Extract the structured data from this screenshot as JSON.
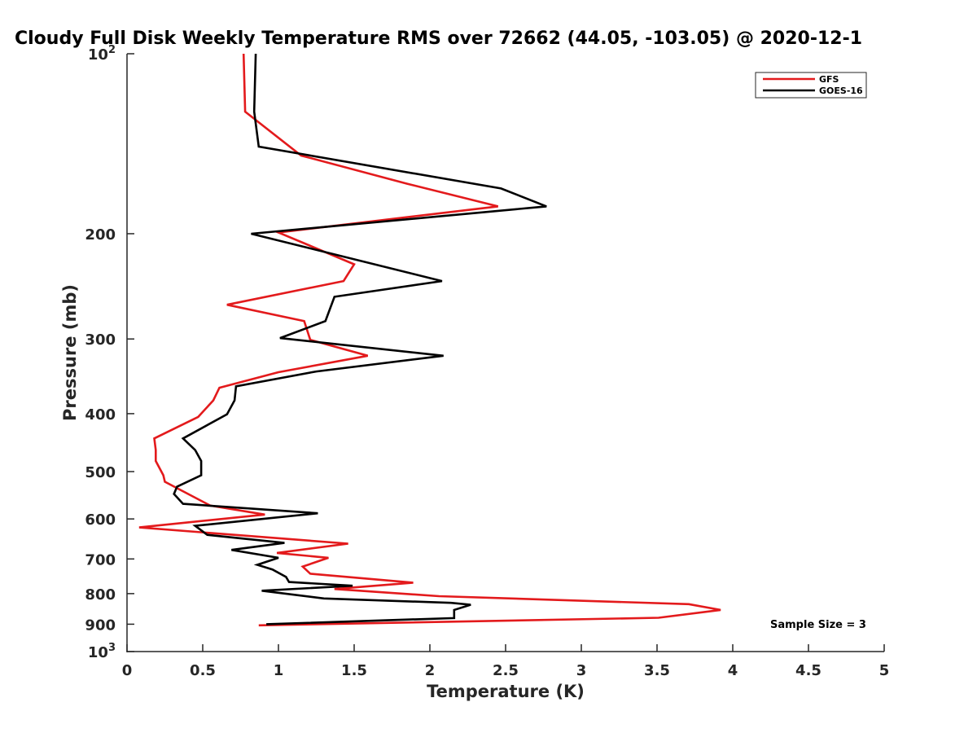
{
  "chart_data": {
    "type": "line",
    "title": "Cloudy Full Disk Weekly Temperature RMS over 72662 (44.05, -103.05) @ 2020-12-1",
    "xlabel": "Temperature (K)",
    "ylabel": "Pressure (mb)",
    "xlim": [
      0,
      5
    ],
    "ylim": [
      100,
      1000
    ],
    "y_scale": "log",
    "y_reversed": true,
    "grid": false,
    "legend_position": "top-right",
    "x_ticks": [
      {
        "value": 0,
        "label": "0"
      },
      {
        "value": 0.5,
        "label": "0.5"
      },
      {
        "value": 1,
        "label": "1"
      },
      {
        "value": 1.5,
        "label": "1.5"
      },
      {
        "value": 2,
        "label": "2"
      },
      {
        "value": 2.5,
        "label": "2.5"
      },
      {
        "value": 3,
        "label": "3"
      },
      {
        "value": 3.5,
        "label": "3.5"
      },
      {
        "value": 4,
        "label": "4"
      },
      {
        "value": 4.5,
        "label": "4.5"
      },
      {
        "value": 5,
        "label": "5"
      }
    ],
    "y_ticks": [
      {
        "value": 100,
        "base": "10",
        "exp": "2"
      },
      {
        "value": 200,
        "label": "200"
      },
      {
        "value": 300,
        "label": "300"
      },
      {
        "value": 400,
        "label": "400"
      },
      {
        "value": 500,
        "label": "500"
      },
      {
        "value": 600,
        "label": "600"
      },
      {
        "value": 700,
        "label": "700"
      },
      {
        "value": 800,
        "label": "800"
      },
      {
        "value": 900,
        "label": "900"
      },
      {
        "value": 1000,
        "base": "10",
        "exp": "3"
      }
    ],
    "annotation": "Sample Size = 3",
    "series": [
      {
        "name": "GFS",
        "color": "#e31a1c",
        "points": [
          [
            0.77,
            100
          ],
          [
            0.78,
            125
          ],
          [
            1.15,
            148
          ],
          [
            1.85,
            165
          ],
          [
            2.45,
            180
          ],
          [
            1.0,
            199
          ],
          [
            1.5,
            225
          ],
          [
            1.43,
            240
          ],
          [
            0.66,
            263
          ],
          [
            1.17,
            280
          ],
          [
            1.21,
            301
          ],
          [
            1.59,
            320
          ],
          [
            1.0,
            341
          ],
          [
            0.61,
            362
          ],
          [
            0.57,
            380
          ],
          [
            0.47,
            405
          ],
          [
            0.18,
            440
          ],
          [
            0.19,
            460
          ],
          [
            0.19,
            480
          ],
          [
            0.24,
            507
          ],
          [
            0.25,
            520
          ],
          [
            0.55,
            570
          ],
          [
            0.91,
            590
          ],
          [
            0.08,
            620
          ],
          [
            1.46,
            660
          ],
          [
            0.99,
            684
          ],
          [
            1.33,
            697
          ],
          [
            1.16,
            721
          ],
          [
            1.21,
            741
          ],
          [
            1.89,
            767
          ],
          [
            1.37,
            786
          ],
          [
            2.06,
            808
          ],
          [
            3.71,
            833
          ],
          [
            3.92,
            852
          ],
          [
            3.51,
            878
          ],
          [
            0.87,
            904
          ]
        ]
      },
      {
        "name": "GOES-16",
        "color": "#000000",
        "points": [
          [
            0.85,
            100
          ],
          [
            0.84,
            125
          ],
          [
            0.87,
            143
          ],
          [
            2.47,
            168
          ],
          [
            2.77,
            180
          ],
          [
            0.82,
            200
          ],
          [
            2.08,
            240
          ],
          [
            1.37,
            255
          ],
          [
            1.31,
            280
          ],
          [
            1.01,
            299
          ],
          [
            2.09,
            320
          ],
          [
            1.25,
            340
          ],
          [
            0.72,
            360
          ],
          [
            0.71,
            380
          ],
          [
            0.66,
            401
          ],
          [
            0.37,
            440
          ],
          [
            0.45,
            460
          ],
          [
            0.49,
            480
          ],
          [
            0.49,
            507
          ],
          [
            0.33,
            530
          ],
          [
            0.31,
            545
          ],
          [
            0.37,
            566
          ],
          [
            1.26,
            587
          ],
          [
            0.45,
            616
          ],
          [
            0.53,
            638
          ],
          [
            1.04,
            658
          ],
          [
            0.69,
            676
          ],
          [
            1.0,
            697
          ],
          [
            0.86,
            716
          ],
          [
            0.96,
            729
          ],
          [
            1.05,
            750
          ],
          [
            1.07,
            765
          ],
          [
            1.49,
            776
          ],
          [
            0.89,
            791
          ],
          [
            1.3,
            815
          ],
          [
            2.14,
            829
          ],
          [
            2.27,
            835
          ],
          [
            2.16,
            852
          ],
          [
            2.16,
            879
          ],
          [
            0.92,
            900
          ]
        ]
      }
    ]
  }
}
